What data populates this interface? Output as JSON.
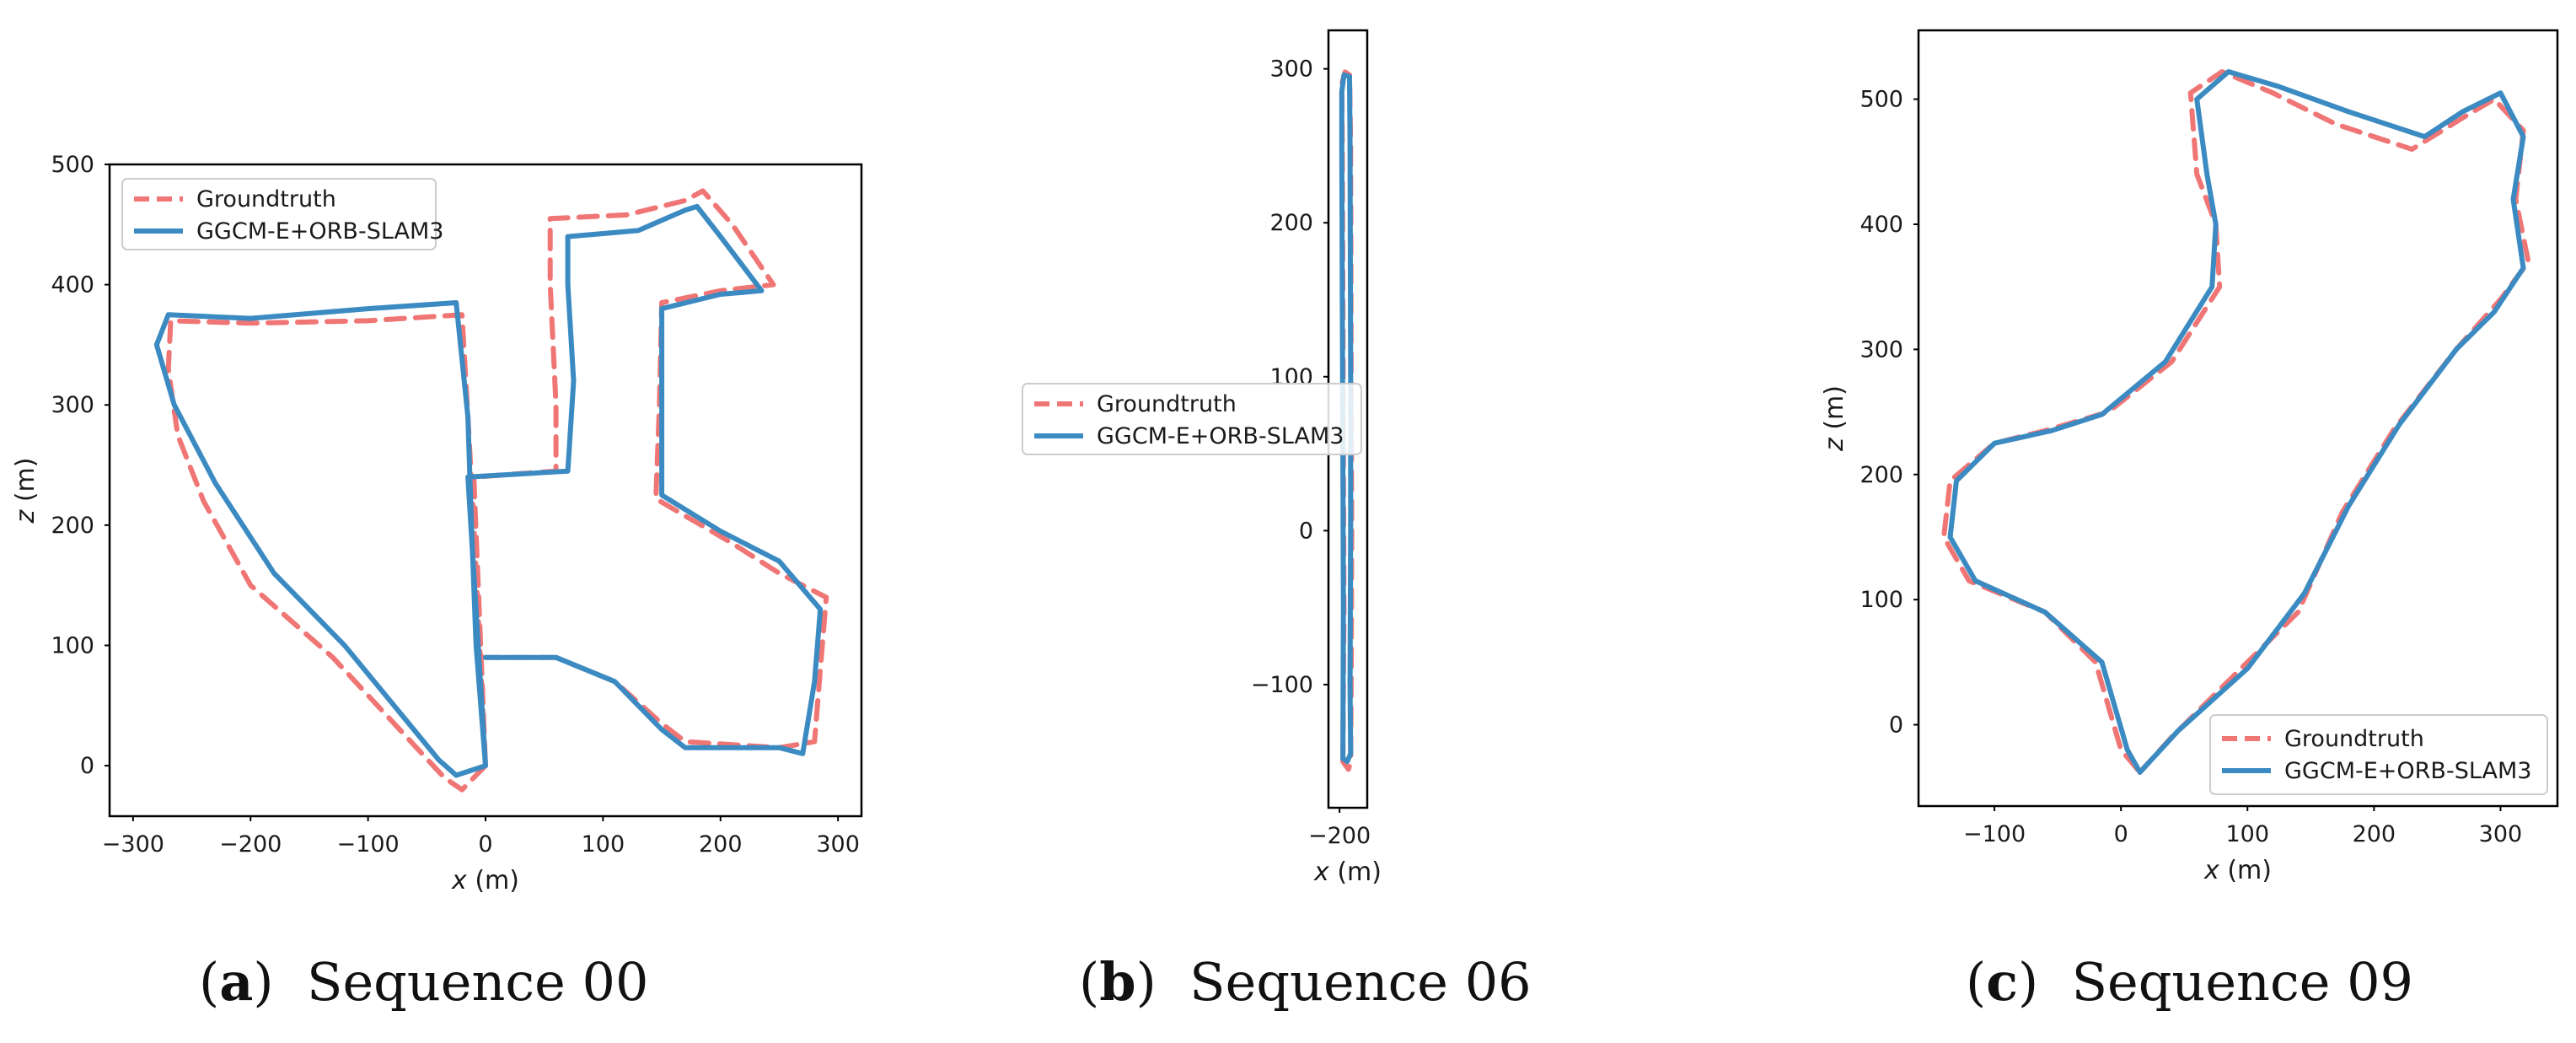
{
  "figure": {
    "captions": [
      {
        "label": "a",
        "text": "Sequence 00"
      },
      {
        "label": "b",
        "text": "Sequence 06"
      },
      {
        "label": "c",
        "text": "Sequence 09"
      }
    ]
  },
  "colors": {
    "groundtruth": "#f07575",
    "estimate": "#3b8bc2",
    "axes": "#000000",
    "text": "#1a1a1a"
  },
  "chart_data": [
    {
      "type": "line",
      "panel": "a",
      "xlabel_var": "x",
      "xlabel_unit": " (m)",
      "ylabel_var": "z",
      "ylabel_unit": " (m)",
      "xlim": [
        -320,
        320
      ],
      "ylim": [
        -42,
        500
      ],
      "xticks": [
        -300,
        -200,
        -100,
        0,
        100,
        200,
        300
      ],
      "yticks": [
        0,
        100,
        200,
        300,
        400,
        500
      ],
      "grid": false,
      "legend_position": "top-left",
      "series": [
        {
          "name": "Groundtruth",
          "style": "dashed",
          "points": [
            [
              0,
              0
            ],
            [
              -20,
              -20
            ],
            [
              -35,
              -10
            ],
            [
              -130,
              90
            ],
            [
              -200,
              150
            ],
            [
              -240,
              220
            ],
            [
              -262,
              275
            ],
            [
              -270,
              330
            ],
            [
              -268,
              370
            ],
            [
              -200,
              368
            ],
            [
              -100,
              370
            ],
            [
              -20,
              375
            ],
            [
              -15,
              290
            ],
            [
              -10,
              200
            ],
            [
              -5,
              100
            ],
            [
              0,
              0
            ],
            [
              -10,
              240
            ],
            [
              60,
              245
            ],
            [
              60,
              300
            ],
            [
              55,
              400
            ],
            [
              55,
              455
            ],
            [
              120,
              458
            ],
            [
              170,
              470
            ],
            [
              185,
              478
            ],
            [
              210,
              450
            ],
            [
              245,
              400
            ],
            [
              200,
              395
            ],
            [
              150,
              385
            ],
            [
              148,
              300
            ],
            [
              145,
              222
            ],
            [
              210,
              185
            ],
            [
              250,
              160
            ],
            [
              290,
              140
            ],
            [
              285,
              80
            ],
            [
              280,
              20
            ],
            [
              250,
              15
            ],
            [
              170,
              20
            ],
            [
              150,
              35
            ],
            [
              110,
              70
            ],
            [
              60,
              90
            ],
            [
              0,
              90
            ]
          ]
        },
        {
          "name": "GGCM-E+ORB-SLAM3",
          "style": "solid",
          "points": [
            [
              0,
              0
            ],
            [
              -25,
              -8
            ],
            [
              -40,
              5
            ],
            [
              -120,
              100
            ],
            [
              -180,
              160
            ],
            [
              -230,
              235
            ],
            [
              -265,
              300
            ],
            [
              -280,
              350
            ],
            [
              -270,
              375
            ],
            [
              -200,
              372
            ],
            [
              -100,
              380
            ],
            [
              -25,
              385
            ],
            [
              -15,
              290
            ],
            [
              -12,
              200
            ],
            [
              -8,
              100
            ],
            [
              0,
              0
            ],
            [
              -15,
              240
            ],
            [
              70,
              245
            ],
            [
              75,
              320
            ],
            [
              70,
              400
            ],
            [
              70,
              440
            ],
            [
              130,
              445
            ],
            [
              170,
              462
            ],
            [
              180,
              465
            ],
            [
              200,
              440
            ],
            [
              235,
              395
            ],
            [
              200,
              392
            ],
            [
              150,
              380
            ],
            [
              150,
              300
            ],
            [
              150,
              225
            ],
            [
              200,
              195
            ],
            [
              250,
              170
            ],
            [
              285,
              130
            ],
            [
              280,
              70
            ],
            [
              270,
              10
            ],
            [
              250,
              15
            ],
            [
              170,
              15
            ],
            [
              150,
              30
            ],
            [
              110,
              70
            ],
            [
              60,
              90
            ],
            [
              0,
              90
            ]
          ]
        }
      ]
    },
    {
      "type": "line",
      "panel": "b",
      "xlabel_var": "x",
      "xlabel_unit": " (m)",
      "ylabel_var": "",
      "ylabel_unit": "",
      "xlim": [
        -210,
        -175
      ],
      "ylim": [
        -180,
        325
      ],
      "xticks": [
        -200
      ],
      "yticks": [
        -100,
        0,
        100,
        200,
        300
      ],
      "grid": false,
      "legend_position": "center-left",
      "series": [
        {
          "name": "Groundtruth",
          "style": "dashed",
          "points": [
            [
              -197,
              -150
            ],
            [
              -196,
              -50
            ],
            [
              -196.5,
              50
            ],
            [
              -197,
              150
            ],
            [
              -197.5,
              250
            ],
            [
              -198,
              290
            ],
            [
              -195,
              298
            ],
            [
              -191,
              296
            ],
            [
              -190,
              250
            ],
            [
              -189.5,
              100
            ],
            [
              -189,
              0
            ],
            [
              -189.5,
              -100
            ],
            [
              -190,
              -150
            ],
            [
              -192,
              -155
            ],
            [
              -197,
              -150
            ]
          ]
        },
        {
          "name": "GGCM-E+ORB-SLAM3",
          "style": "solid",
          "points": [
            [
              -197,
              -148
            ],
            [
              -196.5,
              -50
            ],
            [
              -197,
              50
            ],
            [
              -197.5,
              150
            ],
            [
              -198,
              250
            ],
            [
              -198,
              285
            ],
            [
              -196,
              296
            ],
            [
              -191,
              295
            ],
            [
              -190.5,
              250
            ],
            [
              -190,
              100
            ],
            [
              -190,
              0
            ],
            [
              -190.5,
              -100
            ],
            [
              -190,
              -145
            ],
            [
              -193,
              -150
            ],
            [
              -197,
              -148
            ]
          ]
        }
      ]
    },
    {
      "type": "line",
      "panel": "c",
      "xlabel_var": "x",
      "xlabel_unit": " (m)",
      "ylabel_var": "z",
      "ylabel_unit": " (m)",
      "xlim": [
        -160,
        345
      ],
      "ylim": [
        -65,
        555
      ],
      "xticks": [
        -100,
        0,
        100,
        200,
        300
      ],
      "yticks": [
        0,
        100,
        200,
        300,
        400,
        500
      ],
      "grid": false,
      "legend_position": "bottom-right",
      "series": [
        {
          "name": "Groundtruth",
          "style": "dashed",
          "points": [
            [
              15,
              -38
            ],
            [
              40,
              -10
            ],
            [
              90,
              40
            ],
            [
              140,
              90
            ],
            [
              175,
              170
            ],
            [
              215,
              235
            ],
            [
              265,
              300
            ],
            [
              300,
              340
            ],
            [
              322,
              370
            ],
            [
              312,
              420
            ],
            [
              318,
              475
            ],
            [
              295,
              500
            ],
            [
              270,
              485
            ],
            [
              230,
              460
            ],
            [
              170,
              480
            ],
            [
              120,
              505
            ],
            [
              80,
              522
            ],
            [
              55,
              505
            ],
            [
              60,
              440
            ],
            [
              75,
              400
            ],
            [
              78,
              350
            ],
            [
              40,
              290
            ],
            [
              -10,
              250
            ],
            [
              -60,
              235
            ],
            [
              -100,
              225
            ],
            [
              -135,
              195
            ],
            [
              -140,
              150
            ],
            [
              -120,
              115
            ],
            [
              -60,
              90
            ],
            [
              -20,
              50
            ],
            [
              0,
              -20
            ],
            [
              15,
              -38
            ]
          ]
        },
        {
          "name": "GGCM-E+ORB-SLAM3",
          "style": "solid",
          "points": [
            [
              15,
              -38
            ],
            [
              45,
              -5
            ],
            [
              100,
              45
            ],
            [
              145,
              105
            ],
            [
              180,
              175
            ],
            [
              220,
              240
            ],
            [
              265,
              300
            ],
            [
              295,
              330
            ],
            [
              318,
              365
            ],
            [
              310,
              420
            ],
            [
              318,
              470
            ],
            [
              300,
              505
            ],
            [
              270,
              490
            ],
            [
              240,
              470
            ],
            [
              180,
              490
            ],
            [
              125,
              510
            ],
            [
              85,
              522
            ],
            [
              60,
              500
            ],
            [
              68,
              440
            ],
            [
              75,
              400
            ],
            [
              72,
              350
            ],
            [
              35,
              290
            ],
            [
              -15,
              248
            ],
            [
              -55,
              235
            ],
            [
              -100,
              225
            ],
            [
              -130,
              195
            ],
            [
              -135,
              150
            ],
            [
              -115,
              115
            ],
            [
              -60,
              90
            ],
            [
              -15,
              50
            ],
            [
              5,
              -20
            ],
            [
              15,
              -38
            ]
          ]
        }
      ]
    }
  ]
}
